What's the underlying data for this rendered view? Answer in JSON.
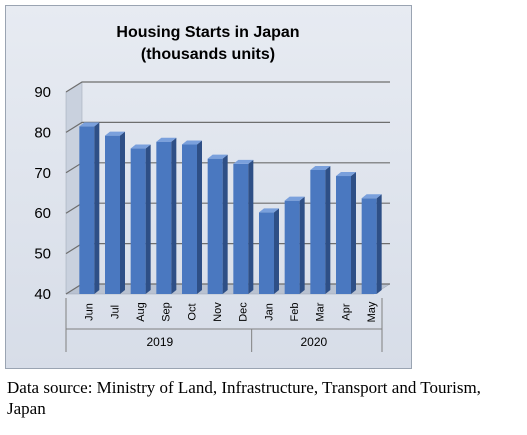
{
  "chart_data": {
    "type": "bar",
    "title": "Housing Starts in Japan",
    "subtitle": "(thousands units)",
    "categories": [
      "Jun",
      "Jul",
      "Aug",
      "Sep",
      "Oct",
      "Nov",
      "Dec",
      "Jan",
      "Feb",
      "Mar",
      "Apr",
      "May"
    ],
    "groups": [
      {
        "label": "2019",
        "categories": [
          "Jun",
          "Jul",
          "Aug",
          "Sep",
          "Oct",
          "Nov",
          "Dec"
        ]
      },
      {
        "label": "2020",
        "categories": [
          "Jan",
          "Feb",
          "Mar",
          "Apr",
          "May"
        ]
      }
    ],
    "values": [
      81.5,
      79.2,
      76.0,
      77.7,
      77.0,
      73.5,
      72.2,
      60.2,
      63.1,
      70.7,
      69.2,
      63.7
    ],
    "yticks": [
      40,
      50,
      60,
      70,
      80,
      90
    ],
    "ylim": [
      40,
      90
    ],
    "grid": true,
    "legend": "none",
    "bar_color": "#4a78c0",
    "bar_side_color": "#2e4f86",
    "bar_top_color": "#7aa0dc"
  },
  "source_text": "Data source: Ministry of Land, Infrastructure, Transport and Tourism, Japan"
}
